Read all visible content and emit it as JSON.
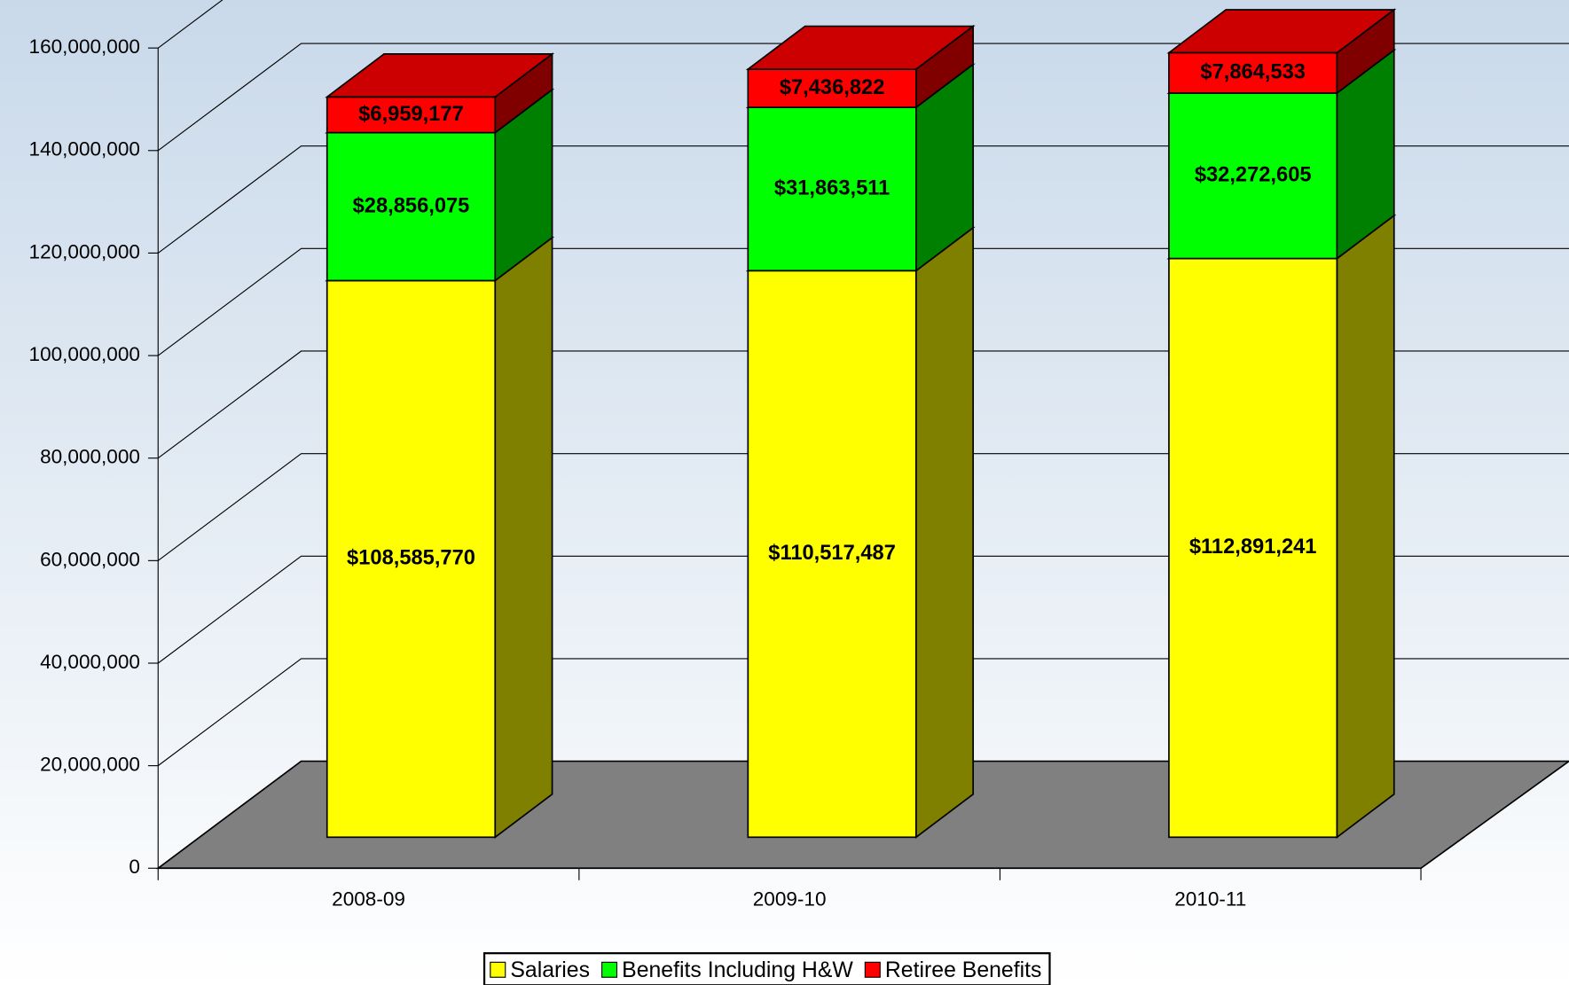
{
  "chart_data": {
    "type": "bar",
    "stacked": true,
    "view": "3d",
    "categories": [
      "2008-09",
      "2009-10",
      "2010-11"
    ],
    "series": [
      {
        "name": "Salaries",
        "color": "#ffff00",
        "values": [
          108585770,
          110517487,
          112891241
        ],
        "value_labels": [
          "$108,585,770",
          "$110,517,487",
          "$112,891,241"
        ]
      },
      {
        "name": "Benefits Including H&W",
        "color": "#00ff00",
        "values": [
          28856075,
          31863511,
          32272605
        ],
        "value_labels": [
          "$28,856,075",
          "$31,863,511",
          "$32,272,605"
        ]
      },
      {
        "name": "Retiree Benefits",
        "color": "#ff0000",
        "values": [
          6959177,
          7436822,
          7864533
        ],
        "value_labels": [
          "$6,959,177",
          "$7,436,822",
          "$7,864,533"
        ]
      }
    ],
    "ylim": [
      0,
      160000000
    ],
    "yticks": [
      0,
      {
        "value": 20000000,
        "label": "20,000,000"
      },
      {
        "value": 40000000,
        "label": "40,000,000"
      },
      {
        "value": 60000000,
        "label": "60,000,000"
      },
      {
        "value": 80000000,
        "label": "80,000,000"
      },
      {
        "value": 100000000,
        "label": "100,000,000"
      },
      {
        "value": 120000000,
        "label": "120,000,000"
      },
      {
        "value": 140000000,
        "label": "140,000,000"
      },
      {
        "value": 160000000,
        "label": "160,000,000"
      }
    ],
    "grid": true,
    "legend": "bottom"
  }
}
